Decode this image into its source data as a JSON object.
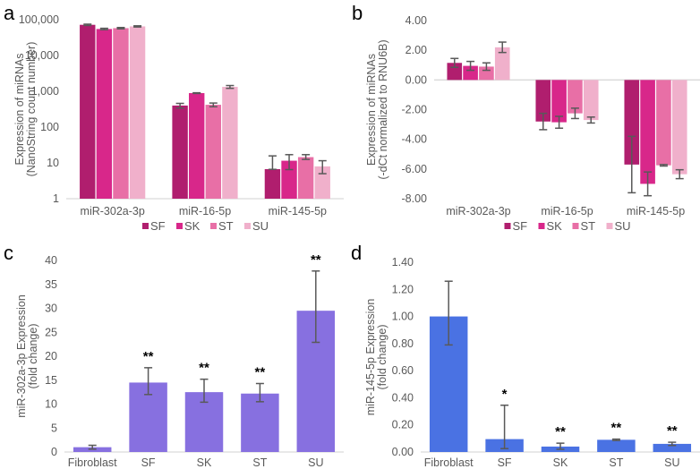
{
  "chart_data": [
    {
      "panel": "a",
      "type": "bar",
      "yscale": "log",
      "ylabel": [
        "Expression of miRNAs",
        "(NanoString count number)"
      ],
      "xlabel": "",
      "ylim": [
        1,
        100000
      ],
      "yticks": [
        "1",
        "10",
        "100",
        "1,000",
        "10,000",
        "100,000"
      ],
      "ytick_values": [
        1,
        10,
        100,
        1000,
        10000,
        100000
      ],
      "categories": [
        "miR-302a-3p",
        "miR-16-5p",
        "miR-145-5p"
      ],
      "series": [
        {
          "name": "SF",
          "color": "#b01e6e",
          "values": [
            72000,
            400,
            6.7
          ],
          "err_low": [
            3000,
            60,
            0.1
          ],
          "err_high": [
            3000,
            60,
            9
          ]
        },
        {
          "name": "SK",
          "color": "#d8278a",
          "values": [
            55000,
            890,
            11.5
          ],
          "err_low": [
            2500,
            20,
            5
          ],
          "err_high": [
            2500,
            20,
            5.5
          ]
        },
        {
          "name": "ST",
          "color": "#e86fa6",
          "values": [
            58000,
            420,
            14.5
          ],
          "err_low": [
            2500,
            50,
            2
          ],
          "err_high": [
            2500,
            50,
            2.5
          ]
        },
        {
          "name": "SU",
          "color": "#f0b0cb",
          "values": [
            65000,
            1330,
            8
          ],
          "err_low": [
            2500,
            120,
            3
          ],
          "err_high": [
            2500,
            120,
            3.5
          ]
        }
      ],
      "legend": {
        "position": "bottom",
        "entries": [
          "SF",
          "SK",
          "ST",
          "SU"
        ]
      },
      "grid": false
    },
    {
      "panel": "b",
      "type": "bar",
      "ylabel": [
        "Expression of miRNAs",
        "(-dCt normalized to RNU6B)"
      ],
      "xlabel": "",
      "ylim": [
        -8,
        4
      ],
      "yticks": [
        "4.00",
        "2.00",
        "0.00",
        "-2.00",
        "-4.00",
        "-6.00",
        "-8.00"
      ],
      "ytick_values": [
        4,
        2,
        0,
        -2,
        -4,
        -6,
        -8
      ],
      "categories": [
        "miR-302a-3p",
        "miR-16-5p",
        "miR-145-5p"
      ],
      "series": [
        {
          "name": "SF",
          "color": "#b01e6e",
          "values": [
            1.15,
            -2.8,
            -5.7
          ],
          "err": [
            0.3,
            0.55,
            1.9
          ]
        },
        {
          "name": "SK",
          "color": "#d8278a",
          "values": [
            0.95,
            -2.85,
            -7.0
          ],
          "err": [
            0.3,
            0.4,
            0.8
          ]
        },
        {
          "name": "ST",
          "color": "#e86fa6",
          "values": [
            0.9,
            -2.25,
            -5.75
          ],
          "err": [
            0.25,
            0.35,
            0.05
          ]
        },
        {
          "name": "SU",
          "color": "#f0b0cb",
          "values": [
            2.2,
            -2.7,
            -6.35
          ],
          "err": [
            0.35,
            0.2,
            0.3
          ]
        }
      ],
      "legend": {
        "position": "bottom",
        "entries": [
          "SF",
          "SK",
          "ST",
          "SU"
        ]
      },
      "grid": false
    },
    {
      "panel": "c",
      "type": "bar",
      "ylabel": [
        "miR-302a-3p Expression",
        "(fold change)"
      ],
      "xlabel": "",
      "ylim": [
        0,
        40
      ],
      "yticks": [
        "0",
        "5",
        "10",
        "15",
        "20",
        "25",
        "30",
        "35",
        "40"
      ],
      "ytick_values": [
        0,
        5,
        10,
        15,
        20,
        25,
        30,
        35,
        40
      ],
      "categories": [
        "Fibroblast",
        "SF",
        "SK",
        "ST",
        "SU"
      ],
      "series": [
        {
          "name": "fold change",
          "color": "#8770e0",
          "values": [
            1.0,
            14.5,
            12.5,
            12.2,
            29.5
          ],
          "err_low": [
            0.4,
            2.5,
            2.1,
            1.7,
            6.6
          ],
          "err_high": [
            0.4,
            3.1,
            2.7,
            2.1,
            8.3
          ]
        }
      ],
      "annotations": [
        "",
        "**",
        "**",
        "**",
        "**"
      ],
      "grid": false
    },
    {
      "panel": "d",
      "type": "bar",
      "ylabel": [
        "miR-145-5p Expression",
        "(fold change)"
      ],
      "xlabel": "",
      "ylim": [
        0,
        1.4
      ],
      "yticks": [
        "0.00",
        "0.20",
        "0.40",
        "0.60",
        "0.80",
        "1.00",
        "1.20",
        "1.40"
      ],
      "ytick_values": [
        0,
        0.2,
        0.4,
        0.6,
        0.8,
        1.0,
        1.2,
        1.4
      ],
      "categories": [
        "Fibroblast",
        "SF",
        "SK",
        "ST",
        "SU"
      ],
      "series": [
        {
          "name": "fold change",
          "color": "#4a72e3",
          "values": [
            1.0,
            0.095,
            0.04,
            0.09,
            0.06
          ],
          "err_low": [
            0.21,
            0.07,
            0.02,
            0.005,
            0.012
          ],
          "err_high": [
            0.26,
            0.25,
            0.025,
            0.005,
            0.012
          ]
        }
      ],
      "annotations": [
        "",
        "*",
        "**",
        "**",
        "**"
      ],
      "grid": false
    }
  ]
}
